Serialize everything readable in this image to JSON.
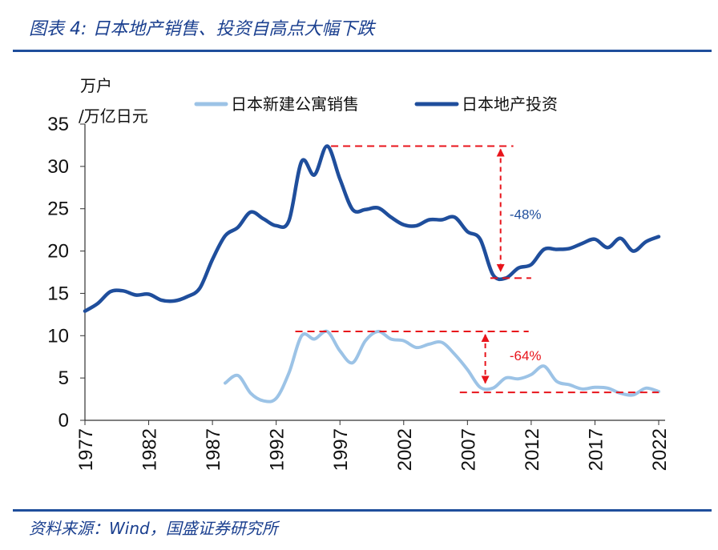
{
  "figure": {
    "title": "图表 4:  日本地产销售、投资自高点大幅下跌",
    "source": "资料来源：Wind，国盛证券研究所"
  },
  "chart_data": {
    "type": "line",
    "unit_label_line1": "万户",
    "unit_label_line2": "/万亿日元",
    "xlim": [
      1977,
      2022
    ],
    "ylim": [
      0,
      35
    ],
    "yticks": [
      0,
      5,
      10,
      15,
      20,
      25,
      30,
      35
    ],
    "xticks": [
      1977,
      1982,
      1987,
      1992,
      1997,
      2002,
      2007,
      2012,
      2017,
      2022
    ],
    "grid": false,
    "legend_position": "top",
    "series": [
      {
        "name": "日本新建公寓销售",
        "color": "#9cc3e6",
        "x": [
          1988,
          1989,
          1990,
          1991,
          1992,
          1993,
          1994,
          1995,
          1996,
          1997,
          1998,
          1999,
          2000,
          2001,
          2002,
          2003,
          2004,
          2005,
          2006,
          2007,
          2008,
          2009,
          2010,
          2011,
          2012,
          2013,
          2014,
          2015,
          2016,
          2017,
          2018,
          2019,
          2020,
          2021,
          2022
        ],
        "y": [
          4.4,
          5.3,
          3.2,
          2.3,
          2.6,
          5.6,
          10.0,
          9.6,
          10.5,
          8.2,
          6.8,
          9.4,
          10.5,
          9.6,
          9.4,
          8.6,
          9.0,
          9.2,
          7.8,
          6.0,
          3.9,
          3.8,
          5.0,
          4.9,
          5.4,
          6.4,
          4.6,
          4.2,
          3.7,
          3.9,
          3.8,
          3.2,
          3.0,
          3.8,
          3.4
        ]
      },
      {
        "name": "日本地产投资",
        "color": "#1f4e9c",
        "x": [
          1977,
          1978,
          1979,
          1980,
          1981,
          1982,
          1983,
          1984,
          1985,
          1986,
          1987,
          1988,
          1989,
          1990,
          1991,
          1992,
          1993,
          1994,
          1995,
          1996,
          1997,
          1998,
          1999,
          2000,
          2001,
          2002,
          2003,
          2004,
          2005,
          2006,
          2007,
          2008,
          2009,
          2010,
          2011,
          2012,
          2013,
          2014,
          2015,
          2016,
          2017,
          2018,
          2019,
          2020,
          2021,
          2022
        ],
        "y": [
          12.9,
          13.8,
          15.2,
          15.3,
          14.8,
          14.9,
          14.2,
          14.1,
          14.6,
          15.6,
          19.0,
          21.8,
          22.8,
          24.6,
          23.8,
          23.0,
          23.6,
          30.6,
          29.0,
          32.4,
          28.5,
          24.9,
          24.9,
          25.1,
          24.0,
          23.1,
          23.0,
          23.7,
          23.7,
          24.0,
          22.3,
          21.4,
          17.2,
          16.8,
          18.0,
          18.4,
          20.2,
          20.2,
          20.3,
          20.9,
          21.4,
          20.4,
          21.5,
          20.0,
          21.1,
          21.7
        ]
      }
    ],
    "annotations": [
      {
        "label": "-48%",
        "color": "#1f4e9c",
        "from_value": 32.4,
        "to_value": 16.8
      },
      {
        "label": "-64%",
        "color": "#e8141b",
        "from_value": 10.5,
        "to_value": 3.4
      }
    ]
  }
}
